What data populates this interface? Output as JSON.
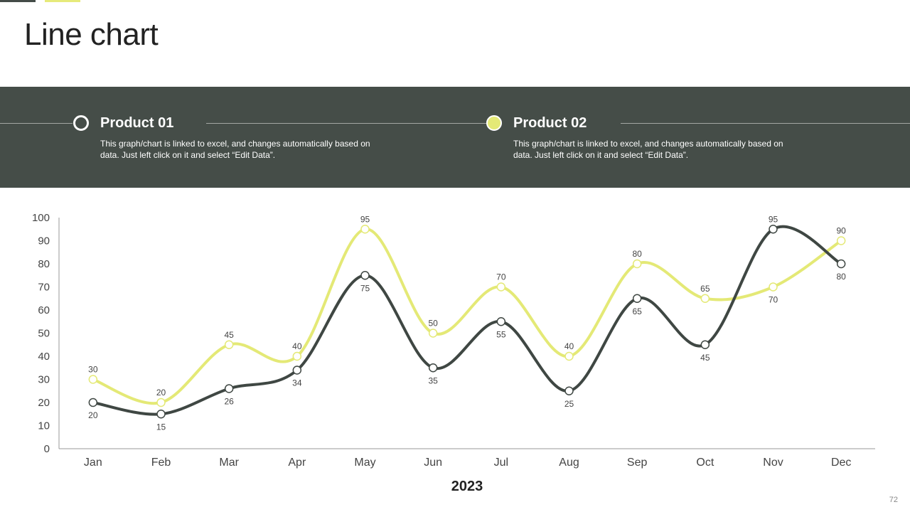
{
  "slide": {
    "title": "Line chart",
    "page_number": "72"
  },
  "legend": [
    {
      "name": "Product 01",
      "description": "This graph/chart is linked to excel, and changes automatically based on data. Just left click on it and select “Edit Data”."
    },
    {
      "name": "Product 02",
      "description": "This graph/chart is linked to excel, and changes automatically based on data. Just left click on it and select “Edit Data”."
    }
  ],
  "colors": {
    "band": "#454d48",
    "series_1": "#3f4743",
    "series_2": "#e4e976",
    "axis": "#9a9a9a"
  },
  "chart_data": {
    "type": "line",
    "categories": [
      "Jan",
      "Feb",
      "Mar",
      "Apr",
      "May",
      "Jun",
      "Jul",
      "Aug",
      "Sep",
      "Oct",
      "Nov",
      "Dec"
    ],
    "xlabel": "2023",
    "ylabel": "",
    "ylim": [
      0,
      100
    ],
    "yticks": [
      0,
      10,
      20,
      30,
      40,
      50,
      60,
      70,
      80,
      90,
      100
    ],
    "grid": false,
    "smooth": true,
    "series": [
      {
        "name": "Product 01",
        "values": [
          20,
          15,
          26,
          34,
          75,
          35,
          55,
          25,
          65,
          45,
          95,
          80
        ]
      },
      {
        "name": "Product 02",
        "values": [
          30,
          20,
          45,
          40,
          95,
          50,
          70,
          40,
          80,
          65,
          70,
          90
        ]
      }
    ]
  }
}
